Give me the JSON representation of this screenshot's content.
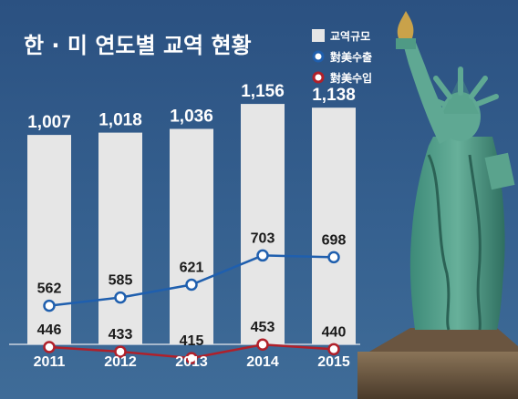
{
  "chart_data": {
    "type": "bar",
    "title": "한 · 미 연도별 교역 현황",
    "categories": [
      "2011",
      "2012",
      "2013",
      "2014",
      "2015"
    ],
    "series": [
      {
        "name": "교역규모",
        "type": "bar",
        "values": [
          1007,
          1018,
          1036,
          1156,
          1138
        ],
        "labels": [
          "1,007",
          "1,018",
          "1,036",
          "1,156",
          "1,138"
        ],
        "color": "#e6e6e6"
      },
      {
        "name": "對美수출",
        "type": "line",
        "values": [
          562,
          585,
          621,
          703,
          698
        ],
        "labels": [
          "562",
          "585",
          "621",
          "703",
          "698"
        ],
        "color": "#1f5fae"
      },
      {
        "name": "對美수입",
        "type": "line",
        "values": [
          446,
          433,
          415,
          453,
          440
        ],
        "labels": [
          "446",
          "433",
          "415",
          "453",
          "440"
        ],
        "color": "#b0202a"
      }
    ],
    "legend_position": "top-right",
    "grid": false
  }
}
